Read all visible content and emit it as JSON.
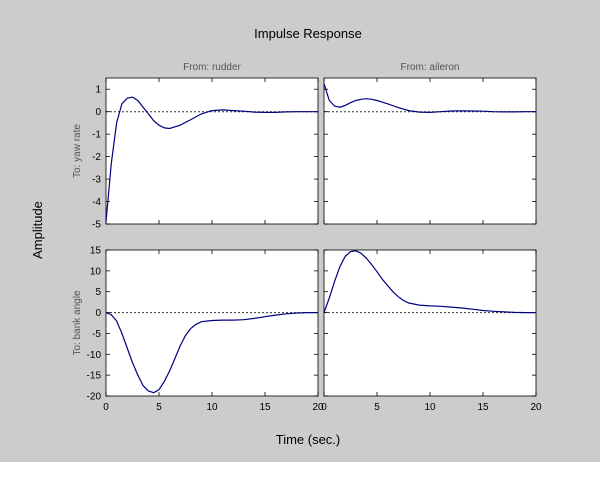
{
  "figure": {
    "background": "#cccccc",
    "axes_background": "#ffffff",
    "line_color": "#000080",
    "zero_line_color": "#333333",
    "label_color": "#555555"
  },
  "chart_data": {
    "type": "line",
    "title": "Impulse Response",
    "xlabel": "Time (sec.)",
    "ylabel": "Amplitude",
    "grid": false,
    "input_labels": [
      "From: rudder",
      "From: aileron"
    ],
    "output_labels": [
      "To: yaw rate",
      "To: bank angle"
    ],
    "xlim": [
      0,
      20
    ],
    "xticks": [
      0,
      5,
      10,
      15,
      20
    ],
    "rows": [
      {
        "ylim": [
          -5,
          1.5
        ],
        "yticks": [
          1,
          0,
          -1,
          -2,
          -3,
          -4,
          -5
        ]
      },
      {
        "ylim": [
          -20,
          15
        ],
        "yticks": [
          15,
          10,
          5,
          0,
          -5,
          -10,
          -15,
          -20
        ]
      }
    ],
    "panels": [
      {
        "input": "From: rudder",
        "output": "To: yaw rate",
        "row": 0,
        "col": 0,
        "x": [
          0,
          0.5,
          1,
          1.5,
          2,
          2.5,
          3,
          3.5,
          4,
          4.5,
          5,
          5.5,
          6,
          7,
          8,
          9,
          10,
          11,
          12,
          13,
          14,
          15,
          16,
          17,
          18,
          19,
          20
        ],
        "y": [
          -4.9,
          -2.3,
          -0.5,
          0.35,
          0.6,
          0.65,
          0.5,
          0.2,
          -0.1,
          -0.4,
          -0.6,
          -0.72,
          -0.75,
          -0.6,
          -0.35,
          -0.1,
          0.05,
          0.08,
          0.05,
          0.02,
          -0.02,
          -0.03,
          -0.03,
          -0.01,
          0.0,
          0.0,
          0.0
        ]
      },
      {
        "input": "From: aileron",
        "output": "To: yaw rate",
        "row": 0,
        "col": 1,
        "x": [
          0,
          0.5,
          1,
          1.5,
          2,
          2.5,
          3,
          3.5,
          4,
          4.5,
          5,
          6,
          7,
          8,
          9,
          10,
          11,
          12,
          13,
          14,
          15,
          16,
          17,
          18,
          19,
          20
        ],
        "y": [
          1.25,
          0.5,
          0.25,
          0.2,
          0.28,
          0.4,
          0.5,
          0.55,
          0.58,
          0.55,
          0.5,
          0.35,
          0.18,
          0.05,
          -0.02,
          -0.03,
          0.0,
          0.03,
          0.04,
          0.03,
          0.02,
          0.0,
          -0.01,
          -0.01,
          0.0,
          0.0
        ]
      },
      {
        "input": "From: rudder",
        "output": "To: bank angle",
        "row": 1,
        "col": 0,
        "x": [
          0,
          0.5,
          1,
          1.5,
          2,
          2.5,
          3,
          3.5,
          4,
          4.5,
          5,
          5.5,
          6,
          6.5,
          7,
          7.5,
          8,
          8.5,
          9,
          10,
          11,
          12,
          13,
          14,
          15,
          16,
          17,
          18,
          19,
          20
        ],
        "y": [
          0,
          -0.5,
          -2,
          -5,
          -8.5,
          -12,
          -15,
          -17.5,
          -18.8,
          -19.2,
          -18.5,
          -16.5,
          -14,
          -11,
          -8,
          -5.5,
          -3.8,
          -2.8,
          -2.2,
          -1.9,
          -1.8,
          -1.8,
          -1.7,
          -1.4,
          -1.0,
          -0.6,
          -0.3,
          -0.1,
          0.0,
          0.0
        ]
      },
      {
        "input": "From: aileron",
        "output": "To: bank angle",
        "row": 1,
        "col": 1,
        "x": [
          0,
          0.5,
          1,
          1.5,
          2,
          2.5,
          3,
          3.5,
          4,
          4.5,
          5,
          5.5,
          6,
          6.5,
          7,
          7.5,
          8,
          9,
          10,
          11,
          12,
          13,
          14,
          15,
          16,
          17,
          18,
          19,
          20
        ],
        "y": [
          0,
          3.5,
          7.5,
          11,
          13.5,
          14.6,
          14.8,
          14.2,
          13,
          11.5,
          9.8,
          8,
          6.5,
          5,
          3.8,
          2.9,
          2.3,
          1.8,
          1.6,
          1.5,
          1.3,
          1.1,
          0.8,
          0.5,
          0.3,
          0.15,
          0.05,
          0.0,
          0.0
        ]
      }
    ]
  }
}
